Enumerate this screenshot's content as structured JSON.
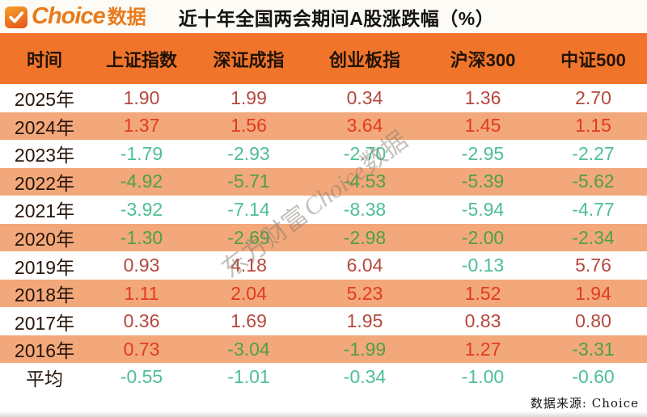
{
  "logo": {
    "brand": "Choice",
    "suffix": "数据",
    "check_icon": "checkmark-in-orange-rounded-square"
  },
  "title": "近十年全国两会期间A股涨跌幅（%）",
  "watermark": {
    "prefix": "东方财富",
    "brand": "Choice",
    "suffix": "数据"
  },
  "source_note": "数据来源: Choice",
  "colors": {
    "header_bg": "#f0752b",
    "alt_row_bg": "#f2a87a",
    "brand_orange": "#e87b1c",
    "positive_red_on_white": "#b5473d",
    "positive_red_on_alt": "#e23b1e",
    "negative_green_on_white": "#4ebf94",
    "negative_green_on_alt": "#4f9f49"
  },
  "chart_data": {
    "type": "table",
    "title": "近十年全国两会期间A股涨跌幅（%）",
    "columns": [
      "时间",
      "上证指数",
      "深证成指",
      "创业板指",
      "沪深300",
      "中证500"
    ],
    "rows": [
      {
        "label": "2025年",
        "values": [
          "1.90",
          "1.99",
          "0.34",
          "1.36",
          "2.70"
        ]
      },
      {
        "label": "2024年",
        "values": [
          "1.37",
          "1.56",
          "3.64",
          "1.45",
          "1.15"
        ]
      },
      {
        "label": "2023年",
        "values": [
          "-1.79",
          "-2.93",
          "-2.70",
          "-2.95",
          "-2.27"
        ]
      },
      {
        "label": "2022年",
        "values": [
          "-4.92",
          "-5.71",
          "-4.53",
          "-5.39",
          "-5.62"
        ]
      },
      {
        "label": "2021年",
        "values": [
          "-3.92",
          "-7.14",
          "-8.38",
          "-5.94",
          "-4.77"
        ]
      },
      {
        "label": "2020年",
        "values": [
          "-1.30",
          "-2.69",
          "-2.98",
          "-2.00",
          "-2.34"
        ]
      },
      {
        "label": "2019年",
        "values": [
          "0.93",
          "4.18",
          "6.04",
          "-0.13",
          "5.76"
        ]
      },
      {
        "label": "2018年",
        "values": [
          "1.11",
          "2.04",
          "5.23",
          "1.52",
          "1.94"
        ]
      },
      {
        "label": "2017年",
        "values": [
          "0.36",
          "1.69",
          "1.95",
          "0.83",
          "0.80"
        ]
      },
      {
        "label": "2016年",
        "values": [
          "0.73",
          "-3.04",
          "-1.99",
          "1.27",
          "-3.31"
        ]
      },
      {
        "label": "平均",
        "values": [
          "-0.55",
          "-1.01",
          "-0.34",
          "-1.00",
          "-0.60"
        ]
      }
    ],
    "value_color_rule": "positive values red, negative values green",
    "row_style_rule": "alternating white / orange rows, starting white at 2025",
    "legend_position": "none",
    "grid": false
  }
}
